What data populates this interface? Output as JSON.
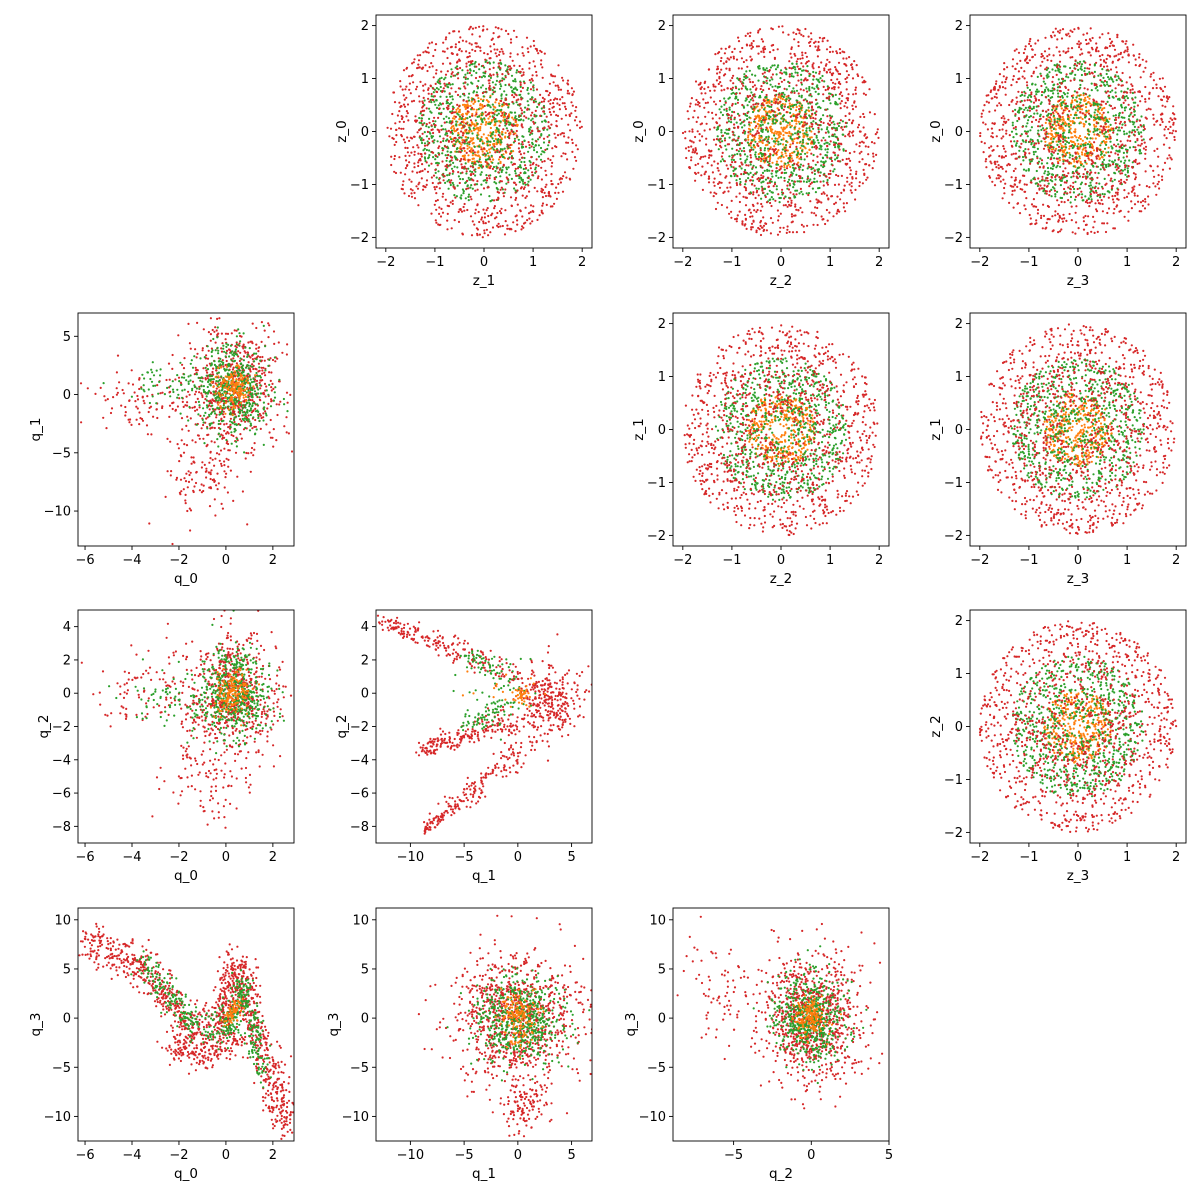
{
  "colors": {
    "background": "#ffffff",
    "axes": "#000000",
    "series": {
      "red": "#d62728",
      "green": "#2ca02c",
      "orange": "#ff7f0e"
    }
  },
  "chart_data": [
    {
      "type": "scatter",
      "row": 0,
      "col": 1,
      "xlabel": "z_1",
      "ylabel": "z_0",
      "xlim": [
        -2.2,
        2.2
      ],
      "ylim": [
        -2.2,
        2.2
      ],
      "xticks": [
        -2,
        -1,
        0,
        1,
        2
      ],
      "yticks": [
        -2,
        -1,
        0,
        1,
        2
      ],
      "shape": "radial",
      "cx": 0,
      "cy": 0,
      "series": [
        {
          "color": "orange",
          "n": 350,
          "r_range": [
            0,
            0.7
          ]
        },
        {
          "color": "green",
          "n": 750,
          "r_range": [
            0.15,
            1.35
          ]
        },
        {
          "color": "red",
          "n": 1100,
          "r_range": [
            0.3,
            2.0
          ]
        }
      ]
    },
    {
      "type": "scatter",
      "row": 0,
      "col": 2,
      "xlabel": "z_2",
      "ylabel": "z_0",
      "xlim": [
        -2.2,
        2.2
      ],
      "ylim": [
        -2.2,
        2.2
      ],
      "xticks": [
        -2,
        -1,
        0,
        1,
        2
      ],
      "yticks": [
        -2,
        -1,
        0,
        1,
        2
      ],
      "shape": "radial",
      "cx": 0,
      "cy": 0,
      "series": [
        {
          "color": "orange",
          "n": 350,
          "r_range": [
            0,
            0.7
          ]
        },
        {
          "color": "green",
          "n": 750,
          "r_range": [
            0.15,
            1.35
          ]
        },
        {
          "color": "red",
          "n": 1100,
          "r_range": [
            0.3,
            2.0
          ]
        }
      ]
    },
    {
      "type": "scatter",
      "row": 0,
      "col": 3,
      "xlabel": "z_3",
      "ylabel": "z_0",
      "xlim": [
        -2.2,
        2.2
      ],
      "ylim": [
        -2.2,
        2.2
      ],
      "xticks": [
        -2,
        -1,
        0,
        1,
        2
      ],
      "yticks": [
        -2,
        -1,
        0,
        1,
        2
      ],
      "shape": "radial",
      "cx": 0,
      "cy": 0,
      "series": [
        {
          "color": "orange",
          "n": 350,
          "r_range": [
            0,
            0.7
          ]
        },
        {
          "color": "green",
          "n": 750,
          "r_range": [
            0.15,
            1.35
          ]
        },
        {
          "color": "red",
          "n": 1100,
          "r_range": [
            0.3,
            2.0
          ]
        }
      ]
    },
    {
      "type": "scatter",
      "row": 1,
      "col": 2,
      "xlabel": "z_2",
      "ylabel": "z_1",
      "xlim": [
        -2.2,
        2.2
      ],
      "ylim": [
        -2.2,
        2.2
      ],
      "xticks": [
        -2,
        -1,
        0,
        1,
        2
      ],
      "yticks": [
        -2,
        -1,
        0,
        1,
        2
      ],
      "shape": "radial",
      "cx": 0,
      "cy": 0,
      "series": [
        {
          "color": "orange",
          "n": 350,
          "r_range": [
            0,
            0.7
          ]
        },
        {
          "color": "green",
          "n": 750,
          "r_range": [
            0.15,
            1.35
          ]
        },
        {
          "color": "red",
          "n": 1100,
          "r_range": [
            0.3,
            2.0
          ]
        }
      ]
    },
    {
      "type": "scatter",
      "row": 1,
      "col": 3,
      "xlabel": "z_3",
      "ylabel": "z_1",
      "xlim": [
        -2.2,
        2.2
      ],
      "ylim": [
        -2.2,
        2.2
      ],
      "xticks": [
        -2,
        -1,
        0,
        1,
        2
      ],
      "yticks": [
        -2,
        -1,
        0,
        1,
        2
      ],
      "shape": "radial",
      "cx": 0,
      "cy": 0,
      "series": [
        {
          "color": "orange",
          "n": 350,
          "r_range": [
            0,
            0.7
          ]
        },
        {
          "color": "green",
          "n": 750,
          "r_range": [
            0.15,
            1.35
          ]
        },
        {
          "color": "red",
          "n": 1100,
          "r_range": [
            0.3,
            2.0
          ]
        }
      ]
    },
    {
      "type": "scatter",
      "row": 2,
      "col": 3,
      "xlabel": "z_3",
      "ylabel": "z_2",
      "xlim": [
        -2.2,
        2.2
      ],
      "ylim": [
        -2.2,
        2.2
      ],
      "xticks": [
        -2,
        -1,
        0,
        1,
        2
      ],
      "yticks": [
        -2,
        -1,
        0,
        1,
        2
      ],
      "shape": "radial",
      "cx": 0,
      "cy": 0,
      "series": [
        {
          "color": "orange",
          "n": 350,
          "r_range": [
            0,
            0.7
          ]
        },
        {
          "color": "green",
          "n": 750,
          "r_range": [
            0.15,
            1.35
          ]
        },
        {
          "color": "red",
          "n": 1100,
          "r_range": [
            0.3,
            2.0
          ]
        }
      ]
    },
    {
      "type": "scatter",
      "row": 1,
      "col": 0,
      "xlabel": "q_0",
      "ylabel": "q_1",
      "xlim": [
        -6.3,
        2.9
      ],
      "ylim": [
        -13.0,
        7.0
      ],
      "xticks": [
        -6,
        -4,
        -2,
        0,
        2
      ],
      "yticks": [
        -10,
        -5,
        0,
        5
      ],
      "shape": "blob",
      "cx": 0.3,
      "cy": 0.5,
      "series": [
        {
          "color": "red",
          "n": 650,
          "sx": 1.0,
          "sy": 2.6
        },
        {
          "color": "red",
          "n": 120,
          "sx": 0.8,
          "sy": 1.8,
          "cx": -1.0,
          "cy": -6.5
        },
        {
          "color": "red",
          "n": 90,
          "sx": 1.2,
          "sy": 1.2,
          "cx": -3.5,
          "cy": -0.5
        },
        {
          "color": "green",
          "n": 500,
          "sx": 0.8,
          "sy": 2.0
        },
        {
          "color": "green",
          "n": 60,
          "sx": 1.0,
          "sy": 0.8,
          "cx": -2.5,
          "cy": 0.8
        },
        {
          "color": "orange",
          "n": 150,
          "sx": 0.35,
          "sy": 0.8
        }
      ]
    },
    {
      "type": "scatter",
      "row": 2,
      "col": 0,
      "xlabel": "q_0",
      "ylabel": "q_2",
      "xlim": [
        -6.3,
        2.9
      ],
      "ylim": [
        -9.0,
        5.0
      ],
      "xticks": [
        -6,
        -4,
        -2,
        0,
        2
      ],
      "yticks": [
        -8,
        -6,
        -4,
        -2,
        0,
        2,
        4
      ],
      "shape": "blob",
      "cx": 0.3,
      "cy": 0.0,
      "series": [
        {
          "color": "red",
          "n": 600,
          "sx": 1.0,
          "sy": 1.7
        },
        {
          "color": "red",
          "n": 120,
          "sx": 0.9,
          "sy": 1.6,
          "cx": -0.8,
          "cy": -4.5
        },
        {
          "color": "red",
          "n": 90,
          "sx": 1.2,
          "sy": 1.2,
          "cx": -3.5,
          "cy": 0.2
        },
        {
          "color": "green",
          "n": 500,
          "sx": 0.8,
          "sy": 1.3
        },
        {
          "color": "green",
          "n": 60,
          "sx": 1.0,
          "sy": 0.8,
          "cx": -2.5,
          "cy": -0.5
        },
        {
          "color": "orange",
          "n": 150,
          "sx": 0.35,
          "sy": 0.6
        }
      ]
    },
    {
      "type": "scatter",
      "row": 2,
      "col": 1,
      "xlabel": "q_1",
      "ylabel": "q_2",
      "xlim": [
        -13.2,
        6.9
      ],
      "ylim": [
        -9.0,
        5.0
      ],
      "xticks": [
        -10,
        -5,
        0,
        5
      ],
      "yticks": [
        -8,
        -6,
        -4,
        -2,
        0,
        2,
        4
      ],
      "shape": "arrow",
      "series": [
        {
          "color": "red",
          "n": 700,
          "arms": [
            [
              -12.5,
              4.3
            ],
            [
              -9.0,
              -3.4
            ],
            [
              -8.8,
              -8.3
            ]
          ],
          "tip": [
            5.5,
            -0.5
          ]
        },
        {
          "color": "green",
          "n": 120,
          "arms": [
            [
              -5.0,
              2.5
            ],
            [
              -5.0,
              -2.0
            ]
          ],
          "tip": [
            1.0,
            -0.2
          ]
        },
        {
          "color": "orange",
          "n": 40,
          "arms": [
            [
              0.0,
              0.0
            ]
          ],
          "tip": [
            1.0,
            -0.2
          ]
        }
      ]
    },
    {
      "type": "scatter",
      "row": 3,
      "col": 0,
      "xlabel": "q_0",
      "ylabel": "q_3",
      "xlim": [
        -6.3,
        2.9
      ],
      "ylim": [
        -12.5,
        11.2
      ],
      "xticks": [
        -6,
        -4,
        -2,
        0,
        2
      ],
      "yticks": [
        -10,
        -5,
        0,
        5,
        10
      ],
      "shape": "polyline",
      "series": [
        {
          "color": "red",
          "n": 1100,
          "path": [
            [
              -6.0,
              8.0
            ],
            [
              -3.5,
              5.0
            ],
            [
              -1.5,
              -1.0
            ],
            [
              -0.3,
              -1.0
            ],
            [
              0.5,
              5.5
            ],
            [
              1.2,
              -1.0
            ],
            [
              2.0,
              -6.0
            ],
            [
              2.5,
              -11.0
            ]
          ],
          "spread": 0.9
        },
        {
          "color": "red",
          "n": 200,
          "path": [
            [
              -2.5,
              -2.5
            ],
            [
              -1.0,
              -3.8
            ],
            [
              0.5,
              -2.0
            ]
          ],
          "spread": 0.7
        },
        {
          "color": "green",
          "n": 450,
          "path": [
            [
              -3.5,
              5.5
            ],
            [
              -1.5,
              -0.5
            ],
            [
              0.0,
              -1.5
            ],
            [
              0.7,
              3.5
            ],
            [
              1.6,
              -5.5
            ]
          ],
          "spread": 0.7
        },
        {
          "color": "orange",
          "n": 60,
          "path": [
            [
              0.0,
              0.0
            ],
            [
              0.6,
              1.5
            ]
          ],
          "spread": 0.4
        }
      ]
    },
    {
      "type": "scatter",
      "row": 3,
      "col": 1,
      "xlabel": "q_1",
      "ylabel": "q_3",
      "xlim": [
        -13.2,
        6.9
      ],
      "ylim": [
        -12.5,
        11.2
      ],
      "xticks": [
        -10,
        -5,
        0,
        5
      ],
      "yticks": [
        -10,
        -5,
        0,
        5,
        10
      ],
      "shape": "blob",
      "cx": 0.0,
      "cy": 0.0,
      "series": [
        {
          "color": "red",
          "n": 900,
          "sx": 3.0,
          "sy": 3.5
        },
        {
          "color": "red",
          "n": 100,
          "sx": 1.0,
          "sy": 1.5,
          "cx": 0.5,
          "cy": -9.0
        },
        {
          "color": "green",
          "n": 550,
          "sx": 2.0,
          "sy": 2.2
        },
        {
          "color": "orange",
          "n": 150,
          "sx": 0.9,
          "sy": 1.2
        }
      ]
    },
    {
      "type": "scatter",
      "row": 3,
      "col": 2,
      "xlabel": "q_2",
      "ylabel": "q_3",
      "xlim": [
        -8.9,
        5.0
      ],
      "ylim": [
        -12.5,
        11.2
      ],
      "xticks": [
        -5,
        0,
        5
      ],
      "yticks": [
        -10,
        -5,
        0,
        5,
        10
      ],
      "shape": "blob",
      "cx": 0.0,
      "cy": 0.0,
      "series": [
        {
          "color": "red",
          "n": 900,
          "sx": 1.7,
          "sy": 3.4
        },
        {
          "color": "red",
          "n": 70,
          "sx": 1.2,
          "sy": 2.5,
          "cx": -6.0,
          "cy": 2.5
        },
        {
          "color": "green",
          "n": 550,
          "sx": 1.2,
          "sy": 2.2
        },
        {
          "color": "orange",
          "n": 150,
          "sx": 0.5,
          "sy": 1.0
        }
      ]
    }
  ]
}
